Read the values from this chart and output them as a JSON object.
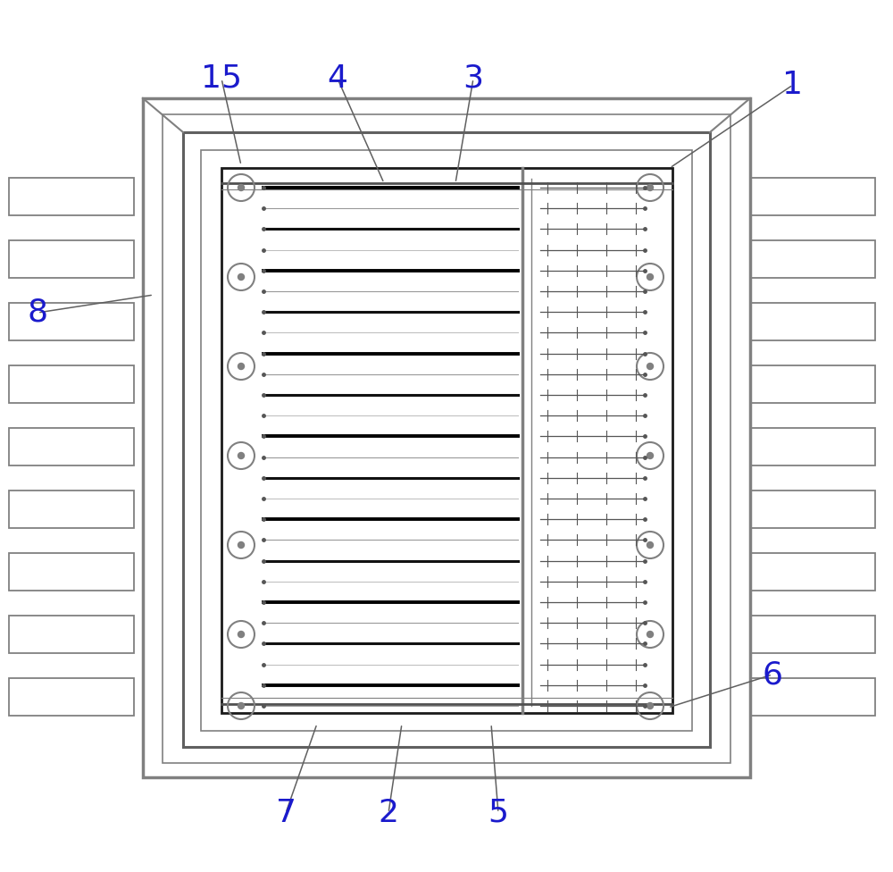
{
  "bg": "#ffffff",
  "lc": "#808080",
  "dc": "#1a1a1a",
  "fig_w": 10.0,
  "fig_h": 9.76,
  "dpi": 100,
  "label_color": "#1a1acc"
}
